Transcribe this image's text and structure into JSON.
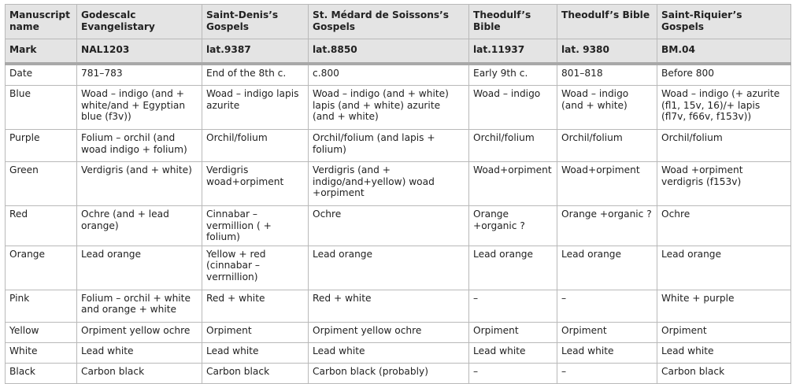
{
  "table": {
    "headers": [
      "Manuscript name",
      "Godescalc Evangelistary",
      "Saint-Denis’s Gospels",
      "St. Médard de Soissons’s Gospels",
      "Theodulf’s Bible",
      "Theodulf’s Bible",
      "Saint-Riquier’s Gospels"
    ],
    "marks": [
      "Mark",
      "NAL1203",
      "lat.9387",
      "lat.8850",
      "lat.11937",
      "lat. 9380",
      "BM.04"
    ],
    "rows": [
      [
        "Date",
        "781–783",
        "End of the 8th c.",
        "c.800",
        "Early 9th c.",
        "801–818",
        "Before 800"
      ],
      [
        "Blue",
        "Woad – indigo (and + white/and + Egyptian blue (f3v))",
        "Woad – indigo lapis azurite",
        "Woad – indigo (and + white) lapis (and + white) azurite (and + white)",
        "Woad – indigo",
        "Woad – indigo (and + white)",
        "Woad – indigo (+ azurite (fl1, 15v, 16)/+ lapis (fl7v, f66v, f153v))"
      ],
      [
        "Purple",
        "Folium – orchil (and woad indigo + folium)",
        "Orchil/folium",
        "Orchil/folium (and lapis + folium)",
        "Orchil/folium",
        "Orchil/folium",
        "Orchil/folium"
      ],
      [
        "Green",
        "Verdigris (and + white)",
        "Verdigris woad+orpiment",
        "Verdigris (and + indigo/and+yellow) woad +orpiment",
        "Woad+orpiment",
        "Woad+orpiment",
        "Woad +orpiment verdigris (f153v)"
      ],
      [
        "Red",
        "Ochre (and + lead orange)",
        "Cinnabar – vermillion ( + folium)",
        "Ochre",
        "Orange +organic ?",
        "Orange +organic ?",
        "Ochre"
      ],
      [
        "Orange",
        "Lead orange",
        "Yellow + red (cinnabar – verrnillion)",
        "Lead orange",
        "Lead orange",
        "Lead orange",
        "Lead orange"
      ],
      [
        "Pink",
        "Folium – orchil + white and orange + white",
        "Red + white",
        "Red + white",
        "–",
        "–",
        "White + purple"
      ],
      [
        "Yellow",
        "Orpiment yellow ochre",
        "Orpiment",
        "Orpiment yellow ochre",
        "Orpiment",
        "Orpiment",
        "Orpiment"
      ],
      [
        "White",
        "Lead white",
        "Lead white",
        "Lead white",
        "Lead white",
        "Lead white",
        "Lead white"
      ],
      [
        "Black",
        "Carbon black",
        "Carbon black",
        "Carbon black (probably)",
        "–",
        "–",
        "Carbon black"
      ]
    ]
  }
}
